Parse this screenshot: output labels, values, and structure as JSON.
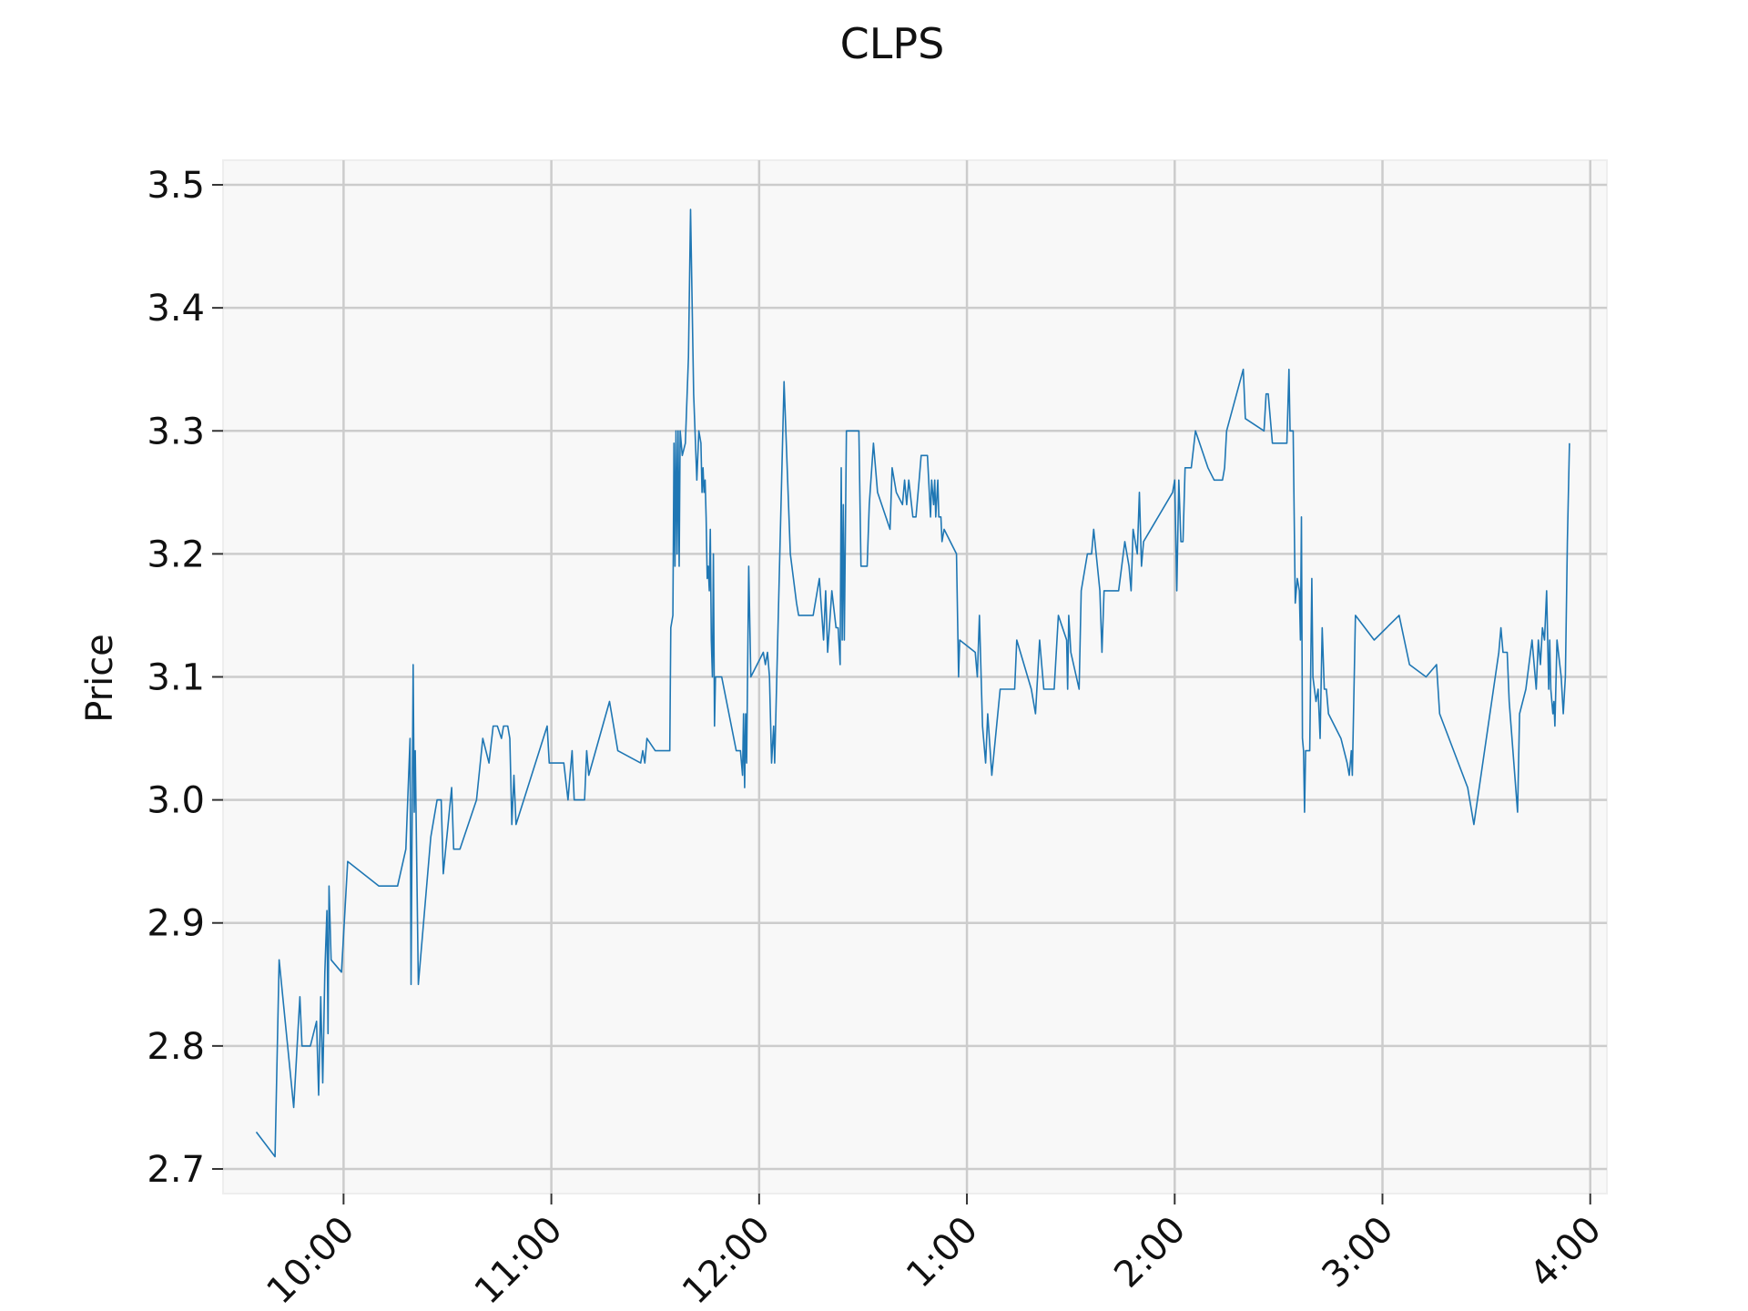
{
  "chart_data": {
    "type": "line",
    "title": "CLPS",
    "xlabel": "",
    "ylabel": "Price",
    "ylim": [
      2.68,
      3.52
    ],
    "xlim_hours": [
      9.42,
      16.08
    ],
    "grid": true,
    "y_ticks": [
      {
        "value": 2.7,
        "label": "2.7"
      },
      {
        "value": 2.8,
        "label": "2.8"
      },
      {
        "value": 2.9,
        "label": "2.9"
      },
      {
        "value": 3.0,
        "label": "3.0"
      },
      {
        "value": 3.1,
        "label": "3.1"
      },
      {
        "value": 3.2,
        "label": "3.2"
      },
      {
        "value": 3.3,
        "label": "3.3"
      },
      {
        "value": 3.4,
        "label": "3.4"
      },
      {
        "value": 3.5,
        "label": "3.5"
      }
    ],
    "x_ticks": [
      {
        "value": 10,
        "label": "10:00"
      },
      {
        "value": 11,
        "label": "11:00"
      },
      {
        "value": 12,
        "label": "12:00"
      },
      {
        "value": 13,
        "label": "1:00"
      },
      {
        "value": 14,
        "label": "2:00"
      },
      {
        "value": 15,
        "label": "3:00"
      },
      {
        "value": 16,
        "label": "4:00"
      }
    ],
    "series": [
      {
        "color": "#1f77b4",
        "points": [
          [
            9.58,
            2.73
          ],
          [
            9.67,
            2.71
          ],
          [
            9.69,
            2.87
          ],
          [
            9.76,
            2.75
          ],
          [
            9.79,
            2.84
          ],
          [
            9.8,
            2.8
          ],
          [
            9.84,
            2.8
          ],
          [
            9.87,
            2.82
          ],
          [
            9.88,
            2.76
          ],
          [
            9.89,
            2.84
          ],
          [
            9.9,
            2.77
          ],
          [
            9.91,
            2.86
          ],
          [
            9.92,
            2.91
          ],
          [
            9.925,
            2.81
          ],
          [
            9.93,
            2.93
          ],
          [
            9.94,
            2.87
          ],
          [
            9.99,
            2.86
          ],
          [
            10.02,
            2.95
          ],
          [
            10.17,
            2.93
          ],
          [
            10.26,
            2.93
          ],
          [
            10.3,
            2.96
          ],
          [
            10.32,
            3.05
          ],
          [
            10.325,
            2.85
          ],
          [
            10.335,
            3.11
          ],
          [
            10.34,
            2.99
          ],
          [
            10.345,
            3.04
          ],
          [
            10.36,
            2.85
          ],
          [
            10.42,
            2.97
          ],
          [
            10.45,
            3.0
          ],
          [
            10.47,
            3.0
          ],
          [
            10.48,
            2.94
          ],
          [
            10.52,
            3.01
          ],
          [
            10.53,
            2.96
          ],
          [
            10.56,
            2.96
          ],
          [
            10.64,
            3.0
          ],
          [
            10.67,
            3.05
          ],
          [
            10.7,
            3.03
          ],
          [
            10.72,
            3.06
          ],
          [
            10.74,
            3.06
          ],
          [
            10.76,
            3.05
          ],
          [
            10.77,
            3.06
          ],
          [
            10.79,
            3.06
          ],
          [
            10.8,
            3.05
          ],
          [
            10.81,
            2.98
          ],
          [
            10.82,
            3.02
          ],
          [
            10.83,
            2.98
          ],
          [
            10.98,
            3.06
          ],
          [
            10.99,
            3.03
          ],
          [
            11.06,
            3.03
          ],
          [
            11.08,
            3.0
          ],
          [
            11.09,
            3.02
          ],
          [
            11.1,
            3.04
          ],
          [
            11.11,
            3.0
          ],
          [
            11.16,
            3.0
          ],
          [
            11.17,
            3.04
          ],
          [
            11.18,
            3.02
          ],
          [
            11.28,
            3.08
          ],
          [
            11.32,
            3.04
          ],
          [
            11.43,
            3.03
          ],
          [
            11.44,
            3.04
          ],
          [
            11.45,
            3.03
          ],
          [
            11.46,
            3.05
          ],
          [
            11.5,
            3.04
          ],
          [
            11.57,
            3.04
          ],
          [
            11.575,
            3.14
          ],
          [
            11.585,
            3.15
          ],
          [
            11.59,
            3.29
          ],
          [
            11.595,
            3.19
          ],
          [
            11.6,
            3.3
          ],
          [
            11.605,
            3.2
          ],
          [
            11.61,
            3.3
          ],
          [
            11.615,
            3.19
          ],
          [
            11.62,
            3.3
          ],
          [
            11.63,
            3.28
          ],
          [
            11.645,
            3.29
          ],
          [
            11.66,
            3.36
          ],
          [
            11.67,
            3.48
          ],
          [
            11.685,
            3.33
          ],
          [
            11.7,
            3.26
          ],
          [
            11.71,
            3.3
          ],
          [
            11.72,
            3.29
          ],
          [
            11.725,
            3.25
          ],
          [
            11.73,
            3.27
          ],
          [
            11.735,
            3.25
          ],
          [
            11.74,
            3.26
          ],
          [
            11.745,
            3.23
          ],
          [
            11.75,
            3.18
          ],
          [
            11.755,
            3.19
          ],
          [
            11.76,
            3.17
          ],
          [
            11.765,
            3.22
          ],
          [
            11.77,
            3.13
          ],
          [
            11.775,
            3.1
          ],
          [
            11.78,
            3.2
          ],
          [
            11.785,
            3.06
          ],
          [
            11.79,
            3.1
          ],
          [
            11.82,
            3.1
          ],
          [
            11.89,
            3.04
          ],
          [
            11.91,
            3.04
          ],
          [
            11.92,
            3.02
          ],
          [
            11.925,
            3.07
          ],
          [
            11.93,
            3.01
          ],
          [
            11.935,
            3.07
          ],
          [
            11.94,
            3.03
          ],
          [
            11.95,
            3.19
          ],
          [
            11.96,
            3.1
          ],
          [
            12.02,
            3.12
          ],
          [
            12.03,
            3.11
          ],
          [
            12.04,
            3.12
          ],
          [
            12.05,
            3.1
          ],
          [
            12.06,
            3.03
          ],
          [
            12.07,
            3.06
          ],
          [
            12.075,
            3.03
          ],
          [
            12.12,
            3.34
          ],
          [
            12.15,
            3.2
          ],
          [
            12.18,
            3.16
          ],
          [
            12.19,
            3.15
          ],
          [
            12.26,
            3.15
          ],
          [
            12.29,
            3.18
          ],
          [
            12.31,
            3.13
          ],
          [
            12.32,
            3.17
          ],
          [
            12.33,
            3.12
          ],
          [
            12.35,
            3.17
          ],
          [
            12.37,
            3.14
          ],
          [
            12.38,
            3.14
          ],
          [
            12.39,
            3.11
          ],
          [
            12.395,
            3.27
          ],
          [
            12.4,
            3.13
          ],
          [
            12.405,
            3.24
          ],
          [
            12.41,
            3.13
          ],
          [
            12.42,
            3.3
          ],
          [
            12.48,
            3.3
          ],
          [
            12.49,
            3.19
          ],
          [
            12.52,
            3.19
          ],
          [
            12.53,
            3.24
          ],
          [
            12.55,
            3.29
          ],
          [
            12.57,
            3.25
          ],
          [
            12.63,
            3.22
          ],
          [
            12.64,
            3.27
          ],
          [
            12.66,
            3.25
          ],
          [
            12.69,
            3.24
          ],
          [
            12.7,
            3.26
          ],
          [
            12.71,
            3.24
          ],
          [
            12.72,
            3.26
          ],
          [
            12.74,
            3.23
          ],
          [
            12.755,
            3.23
          ],
          [
            12.77,
            3.26
          ],
          [
            12.78,
            3.28
          ],
          [
            12.81,
            3.28
          ],
          [
            12.825,
            3.23
          ],
          [
            12.83,
            3.26
          ],
          [
            12.84,
            3.24
          ],
          [
            12.845,
            3.26
          ],
          [
            12.85,
            3.23
          ],
          [
            12.86,
            3.26
          ],
          [
            12.865,
            3.23
          ],
          [
            12.875,
            3.23
          ],
          [
            12.88,
            3.21
          ],
          [
            12.89,
            3.22
          ],
          [
            12.95,
            3.2
          ],
          [
            12.96,
            3.1
          ],
          [
            12.965,
            3.13
          ],
          [
            13.04,
            3.12
          ],
          [
            13.05,
            3.1
          ],
          [
            13.06,
            3.15
          ],
          [
            13.075,
            3.06
          ],
          [
            13.09,
            3.03
          ],
          [
            13.1,
            3.07
          ],
          [
            13.12,
            3.02
          ],
          [
            13.16,
            3.09
          ],
          [
            13.23,
            3.09
          ],
          [
            13.24,
            3.13
          ],
          [
            13.31,
            3.09
          ],
          [
            13.33,
            3.07
          ],
          [
            13.35,
            3.13
          ],
          [
            13.37,
            3.09
          ],
          [
            13.42,
            3.09
          ],
          [
            13.44,
            3.15
          ],
          [
            13.48,
            3.13
          ],
          [
            13.485,
            3.09
          ],
          [
            13.49,
            3.15
          ],
          [
            13.5,
            3.12
          ],
          [
            13.54,
            3.09
          ],
          [
            13.55,
            3.17
          ],
          [
            13.58,
            3.2
          ],
          [
            13.6,
            3.2
          ],
          [
            13.61,
            3.22
          ],
          [
            13.64,
            3.17
          ],
          [
            13.65,
            3.12
          ],
          [
            13.66,
            3.17
          ],
          [
            13.73,
            3.17
          ],
          [
            13.76,
            3.21
          ],
          [
            13.78,
            3.19
          ],
          [
            13.79,
            3.17
          ],
          [
            13.8,
            3.22
          ],
          [
            13.81,
            3.21
          ],
          [
            13.82,
            3.2
          ],
          [
            13.83,
            3.25
          ],
          [
            13.84,
            3.19
          ],
          [
            13.85,
            3.21
          ],
          [
            13.99,
            3.25
          ],
          [
            14.0,
            3.26
          ],
          [
            14.01,
            3.17
          ],
          [
            14.02,
            3.26
          ],
          [
            14.03,
            3.21
          ],
          [
            14.04,
            3.21
          ],
          [
            14.05,
            3.27
          ],
          [
            14.08,
            3.27
          ],
          [
            14.1,
            3.3
          ],
          [
            14.16,
            3.27
          ],
          [
            14.19,
            3.26
          ],
          [
            14.23,
            3.26
          ],
          [
            14.24,
            3.27
          ],
          [
            14.25,
            3.3
          ],
          [
            14.33,
            3.35
          ],
          [
            14.34,
            3.31
          ],
          [
            14.43,
            3.3
          ],
          [
            14.44,
            3.33
          ],
          [
            14.45,
            3.33
          ],
          [
            14.47,
            3.29
          ],
          [
            14.54,
            3.29
          ],
          [
            14.55,
            3.35
          ],
          [
            14.555,
            3.3
          ],
          [
            14.57,
            3.3
          ],
          [
            14.58,
            3.16
          ],
          [
            14.59,
            3.18
          ],
          [
            14.6,
            3.17
          ],
          [
            14.605,
            3.13
          ],
          [
            14.61,
            3.23
          ],
          [
            14.615,
            3.05
          ],
          [
            14.62,
            3.04
          ],
          [
            14.625,
            2.99
          ],
          [
            14.63,
            3.04
          ],
          [
            14.65,
            3.04
          ],
          [
            14.66,
            3.18
          ],
          [
            14.665,
            3.1
          ],
          [
            14.68,
            3.08
          ],
          [
            14.69,
            3.09
          ],
          [
            14.7,
            3.05
          ],
          [
            14.71,
            3.14
          ],
          [
            14.72,
            3.09
          ],
          [
            14.73,
            3.09
          ],
          [
            14.74,
            3.07
          ],
          [
            14.8,
            3.05
          ],
          [
            14.83,
            3.03
          ],
          [
            14.84,
            3.02
          ],
          [
            14.85,
            3.04
          ],
          [
            14.855,
            3.02
          ],
          [
            14.87,
            3.15
          ],
          [
            14.96,
            3.13
          ],
          [
            15.08,
            3.15
          ],
          [
            15.13,
            3.11
          ],
          [
            15.21,
            3.1
          ],
          [
            15.26,
            3.11
          ],
          [
            15.275,
            3.07
          ],
          [
            15.41,
            3.01
          ],
          [
            15.44,
            2.98
          ],
          [
            15.56,
            3.12
          ],
          [
            15.57,
            3.14
          ],
          [
            15.58,
            3.12
          ],
          [
            15.6,
            3.12
          ],
          [
            15.61,
            3.08
          ],
          [
            15.65,
            2.99
          ],
          [
            15.66,
            3.07
          ],
          [
            15.69,
            3.09
          ],
          [
            15.72,
            3.13
          ],
          [
            15.74,
            3.09
          ],
          [
            15.75,
            3.13
          ],
          [
            15.76,
            3.11
          ],
          [
            15.77,
            3.14
          ],
          [
            15.78,
            3.13
          ],
          [
            15.79,
            3.17
          ],
          [
            15.8,
            3.09
          ],
          [
            15.805,
            3.13
          ],
          [
            15.81,
            3.09
          ],
          [
            15.82,
            3.07
          ],
          [
            15.825,
            3.08
          ],
          [
            15.83,
            3.06
          ],
          [
            15.84,
            3.13
          ],
          [
            15.86,
            3.1
          ],
          [
            15.87,
            3.07
          ],
          [
            15.88,
            3.1
          ],
          [
            15.89,
            3.21
          ],
          [
            15.9,
            3.29
          ]
        ]
      }
    ]
  }
}
